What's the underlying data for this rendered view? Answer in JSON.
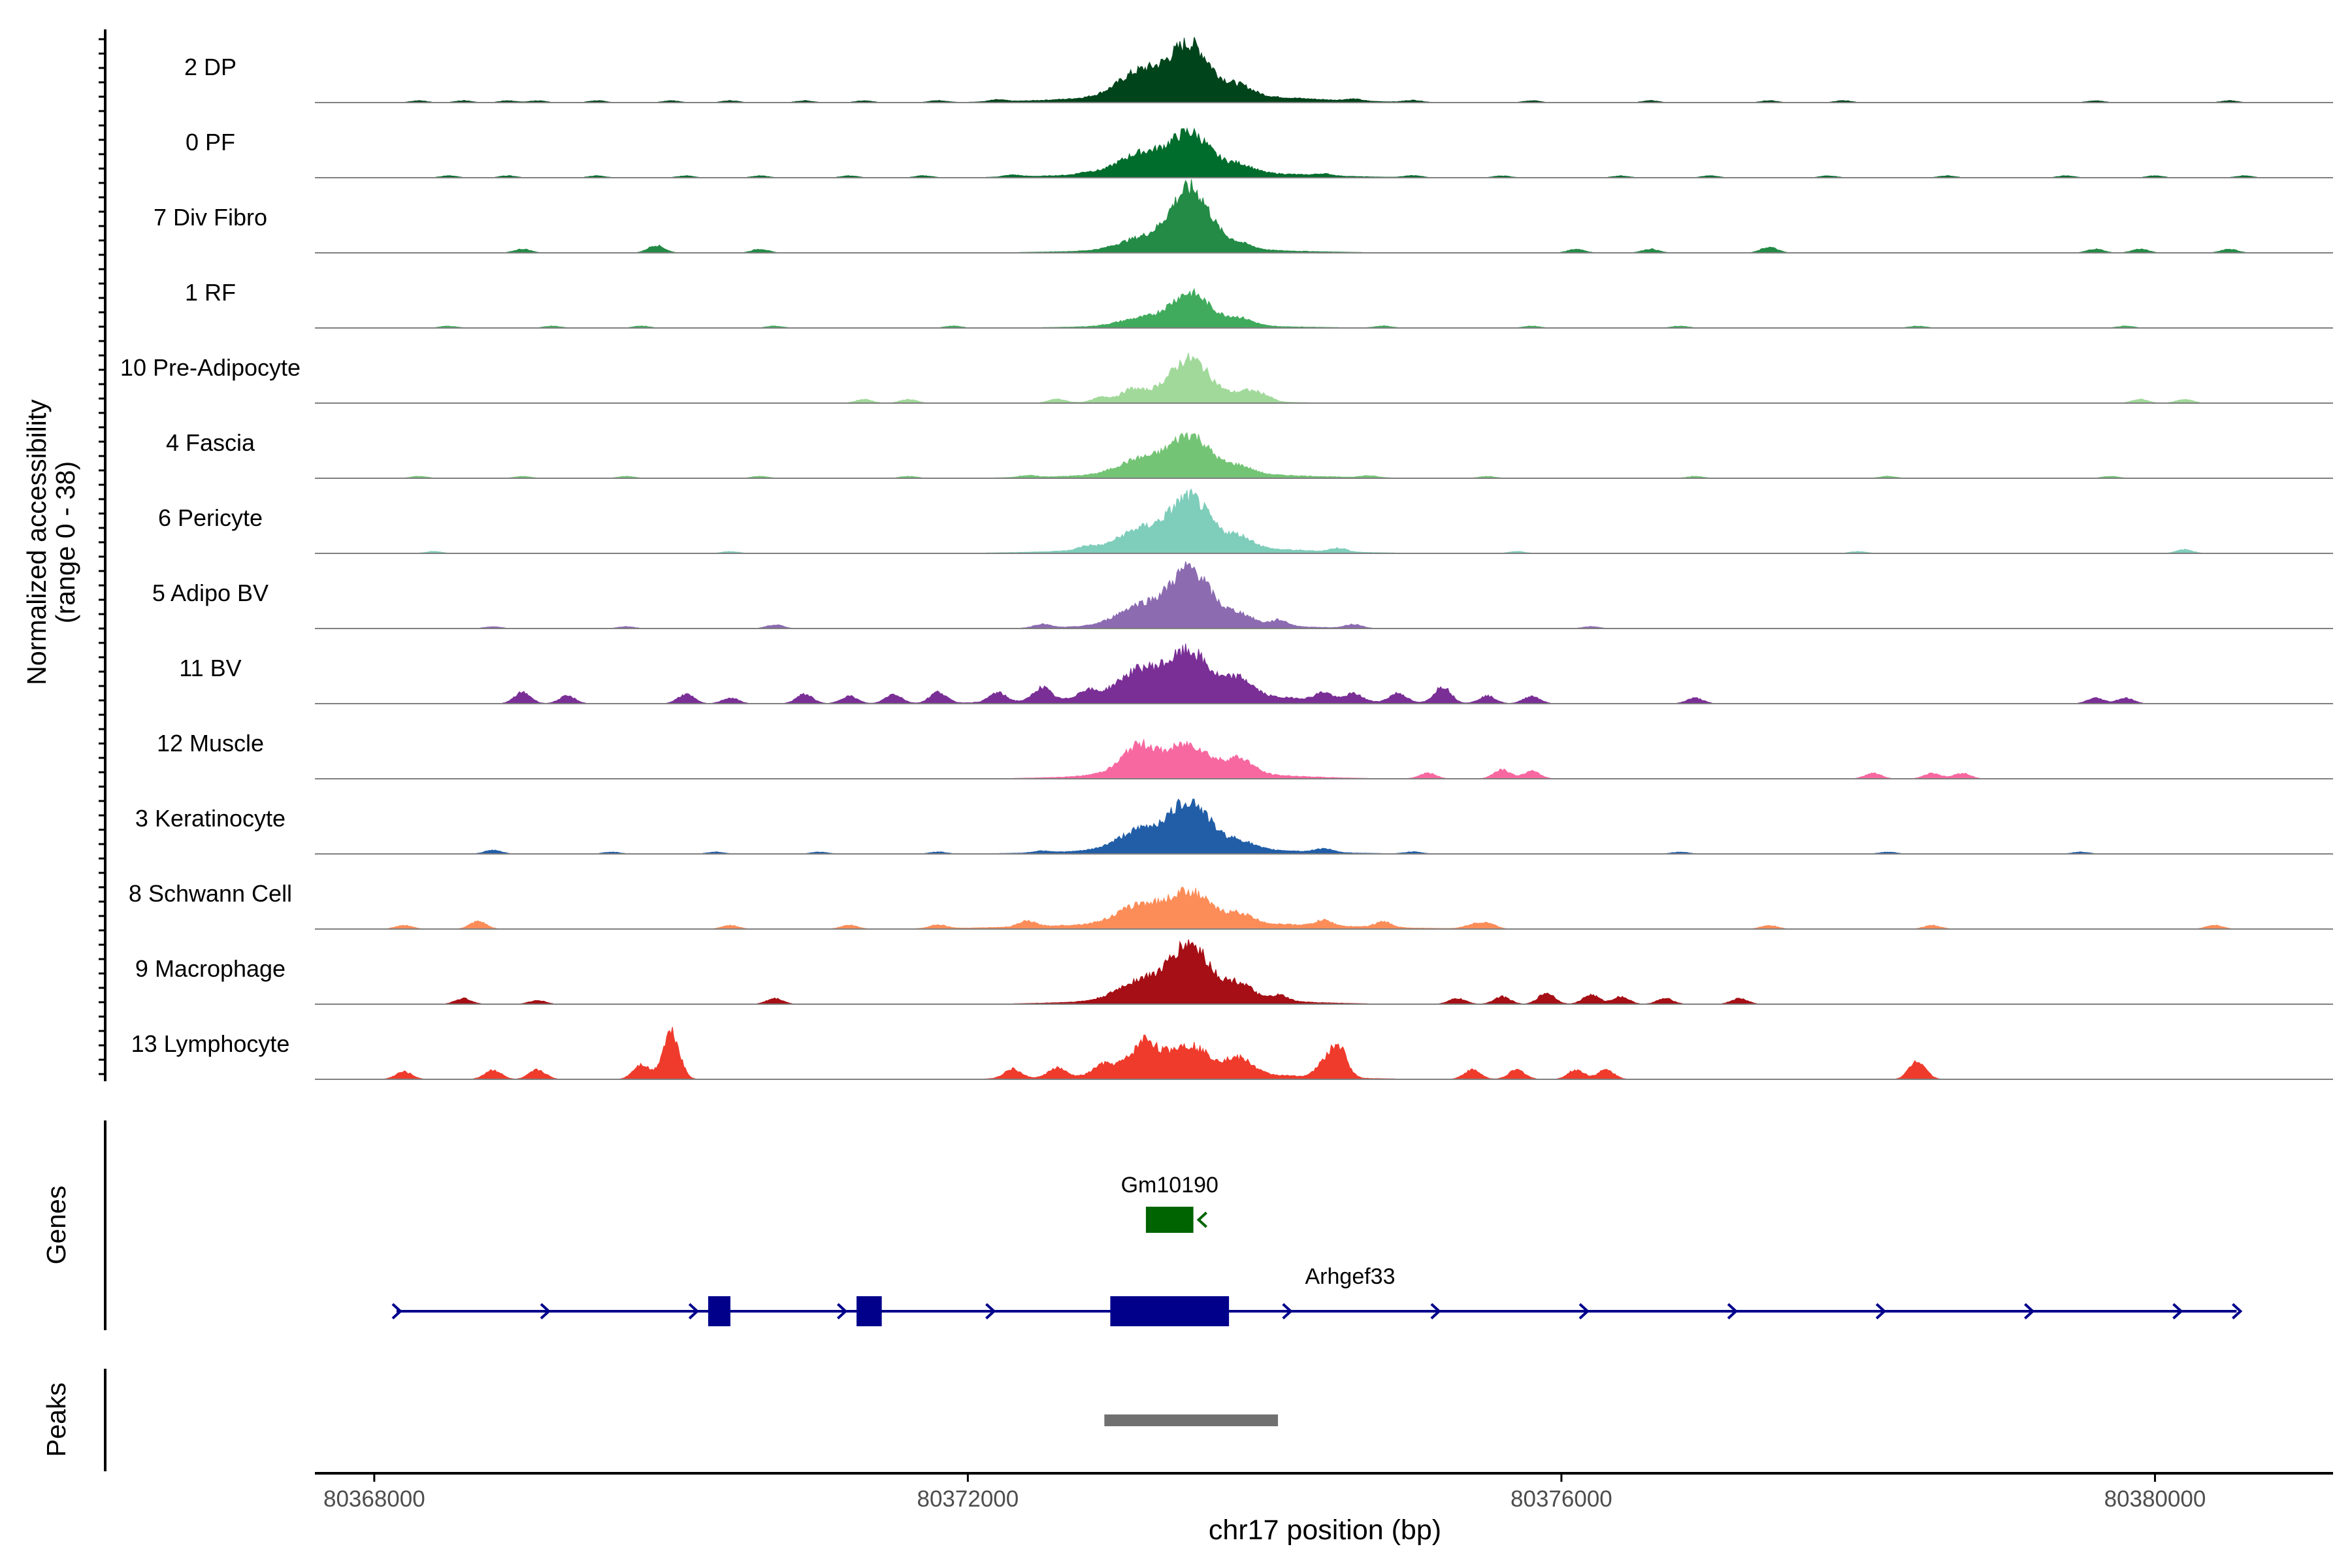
{
  "chart_data": {
    "type": "area",
    "title": "",
    "ylabel": "Normalized accessibility",
    "ylabel_range": "(range 0 - 38)",
    "xlabel": "chr17 position (bp)",
    "y_range": [
      0,
      38
    ],
    "x_range": [
      80367600,
      80381200
    ],
    "x_ticks": [
      {
        "value": 80368000,
        "label": "80368000"
      },
      {
        "value": 80372000,
        "label": "80372000"
      },
      {
        "value": 80376000,
        "label": "80376000"
      },
      {
        "value": 80380000,
        "label": "80380000"
      }
    ],
    "main_peak_center": 80373500,
    "tracks": [
      {
        "name": "2 DP",
        "color": "#00441b",
        "peak": 26,
        "shoulder": 13,
        "right_bump": 5,
        "spread": 620,
        "islands": [
          [
            80368300,
            1
          ],
          [
            80368600,
            1
          ],
          [
            80368900,
            1
          ],
          [
            80369100,
            1
          ],
          [
            80369500,
            1
          ],
          [
            80370000,
            1
          ],
          [
            80370400,
            1
          ],
          [
            80370900,
            1
          ],
          [
            80371300,
            1
          ],
          [
            80371800,
            1
          ],
          [
            80372200,
            1
          ],
          [
            80374600,
            1
          ],
          [
            80375000,
            1
          ],
          [
            80375800,
            1
          ],
          [
            80376600,
            1
          ],
          [
            80377400,
            1
          ],
          [
            80377900,
            1
          ],
          [
            80379600,
            1
          ],
          [
            80380500,
            1
          ]
        ]
      },
      {
        "name": "0 PF",
        "color": "#006d2c",
        "peak": 20,
        "shoulder": 10,
        "right_bump": 4,
        "spread": 600,
        "islands": [
          [
            80368500,
            1
          ],
          [
            80368900,
            1
          ],
          [
            80369500,
            1
          ],
          [
            80370100,
            1
          ],
          [
            80370600,
            1
          ],
          [
            80371200,
            1
          ],
          [
            80371700,
            1
          ],
          [
            80372300,
            1
          ],
          [
            80372800,
            1
          ],
          [
            80374400,
            1
          ],
          [
            80375000,
            1
          ],
          [
            80375600,
            1
          ],
          [
            80376400,
            1
          ],
          [
            80377000,
            1
          ],
          [
            80377800,
            1
          ],
          [
            80378600,
            1
          ],
          [
            80379400,
            1
          ],
          [
            80380000,
            1
          ],
          [
            80380600,
            1
          ]
        ]
      },
      {
        "name": "7 Div Fibro",
        "color": "#238b45",
        "peak": 32,
        "shoulder": 6,
        "right_bump": 3,
        "spread": 560,
        "islands": [
          [
            80369000,
            2
          ],
          [
            80369900,
            4
          ],
          [
            80370600,
            2
          ],
          [
            80376100,
            2
          ],
          [
            80376600,
            2
          ],
          [
            80377400,
            3
          ],
          [
            80379600,
            2
          ],
          [
            80379900,
            2
          ],
          [
            80380500,
            2
          ]
        ]
      },
      {
        "name": "1 RF",
        "color": "#41ab5d",
        "peak": 17,
        "shoulder": 4,
        "right_bump": 4,
        "spread": 540,
        "islands": [
          [
            80368500,
            1
          ],
          [
            80369200,
            1
          ],
          [
            80369800,
            1
          ],
          [
            80370700,
            1
          ],
          [
            80371900,
            1
          ],
          [
            80374800,
            1
          ],
          [
            80375800,
            1
          ],
          [
            80376800,
            1
          ],
          [
            80378400,
            1
          ],
          [
            80379800,
            1
          ]
        ]
      },
      {
        "name": "10 Pre-Adipocyte",
        "color": "#a1d99b",
        "peak": 22,
        "shoulder": 4,
        "right_bump": 3,
        "spread": 430,
        "islands": [
          [
            80371300,
            2
          ],
          [
            80371600,
            2
          ],
          [
            80372600,
            2
          ],
          [
            80372900,
            2
          ],
          [
            80373100,
            3
          ],
          [
            80373900,
            3
          ],
          [
            80374000,
            3
          ],
          [
            80379900,
            2
          ],
          [
            80380200,
            2
          ]
        ]
      },
      {
        "name": "4 Fascia",
        "color": "#74c476",
        "peak": 20,
        "shoulder": 8,
        "right_bump": 4,
        "spread": 600,
        "islands": [
          [
            80368300,
            1
          ],
          [
            80369000,
            1
          ],
          [
            80369700,
            1
          ],
          [
            80370600,
            1
          ],
          [
            80371600,
            1
          ],
          [
            80372400,
            1
          ],
          [
            80374700,
            1
          ],
          [
            80375500,
            1
          ],
          [
            80376900,
            1
          ],
          [
            80378200,
            1
          ],
          [
            80379700,
            1
          ]
        ]
      },
      {
        "name": "6 Pericyte",
        "color": "#7fcdbb",
        "peak": 26,
        "shoulder": 10,
        "right_bump": 6,
        "spread": 600,
        "islands": [
          [
            80368400,
            1
          ],
          [
            80370400,
            1
          ],
          [
            80372800,
            2
          ],
          [
            80374500,
            2
          ],
          [
            80375700,
            1
          ],
          [
            80378000,
            1
          ],
          [
            80380200,
            2
          ]
        ]
      },
      {
        "name": "5 Adipo BV",
        "color": "#8c6bb1",
        "peak": 28,
        "shoulder": 10,
        "right_bump": 5,
        "spread": 470,
        "islands": [
          [
            80368800,
            1
          ],
          [
            80369700,
            1
          ],
          [
            80370700,
            2
          ],
          [
            80372500,
            2
          ],
          [
            80374100,
            3
          ],
          [
            80374600,
            2
          ],
          [
            80376200,
            1
          ]
        ]
      },
      {
        "name": "11 BV",
        "color": "#7a2f96",
        "peak": 22,
        "shoulder": 14,
        "right_bump": 9,
        "spread": 700,
        "islands": [
          [
            80369000,
            6
          ],
          [
            80369300,
            4
          ],
          [
            80370100,
            5
          ],
          [
            80370400,
            3
          ],
          [
            80370900,
            5
          ],
          [
            80371200,
            4
          ],
          [
            80371500,
            5
          ],
          [
            80371800,
            6
          ],
          [
            80372200,
            5
          ],
          [
            80372500,
            7
          ],
          [
            80372800,
            4
          ],
          [
            80374400,
            4
          ],
          [
            80374600,
            4
          ],
          [
            80374900,
            5
          ],
          [
            80375200,
            9
          ],
          [
            80375500,
            4
          ],
          [
            80375800,
            4
          ],
          [
            80376900,
            3
          ],
          [
            80379600,
            3
          ],
          [
            80379800,
            3
          ]
        ]
      },
      {
        "name": "12 Muscle",
        "color": "#f768a1",
        "peak": 14,
        "shoulder": 10,
        "right_bump": 8,
        "spread": 520,
        "islands": [
          [
            80373100,
            4
          ],
          [
            80373200,
            4
          ],
          [
            80375100,
            3
          ],
          [
            80375600,
            5
          ],
          [
            80375800,
            4
          ],
          [
            80378100,
            3
          ],
          [
            80378500,
            3
          ],
          [
            80378700,
            3
          ]
        ]
      },
      {
        "name": "3 Keratinocyte",
        "color": "#225ea8",
        "peak": 24,
        "shoulder": 10,
        "right_bump": 4,
        "spread": 560,
        "islands": [
          [
            80368800,
            2
          ],
          [
            80369600,
            1
          ],
          [
            80370300,
            1
          ],
          [
            80371000,
            1
          ],
          [
            80371800,
            1
          ],
          [
            80372500,
            1
          ],
          [
            80374400,
            2
          ],
          [
            80375000,
            1
          ],
          [
            80376800,
            1
          ],
          [
            80378200,
            1
          ],
          [
            80379500,
            1
          ]
        ]
      },
      {
        "name": "8 Schwann Cell",
        "color": "#fc8d59",
        "peak": 16,
        "shoulder": 10,
        "right_bump": 5,
        "spread": 780,
        "islands": [
          [
            80368200,
            2
          ],
          [
            80368700,
            4
          ],
          [
            80370400,
            2
          ],
          [
            80371200,
            2
          ],
          [
            80371800,
            2
          ],
          [
            80372400,
            3
          ],
          [
            80374400,
            3
          ],
          [
            80374800,
            3
          ],
          [
            80375400,
            2
          ],
          [
            80375500,
            3
          ],
          [
            80377400,
            2
          ],
          [
            80378500,
            2
          ],
          [
            80380400,
            2
          ]
        ]
      },
      {
        "name": "9 Macrophage",
        "color": "#a50f15",
        "peak": 28,
        "shoulder": 10,
        "right_bump": 8,
        "spread": 520,
        "islands": [
          [
            80368600,
            3
          ],
          [
            80369100,
            2
          ],
          [
            80370700,
            3
          ],
          [
            80374100,
            3
          ],
          [
            80375300,
            3
          ],
          [
            80375600,
            4
          ],
          [
            80375900,
            6
          ],
          [
            80376200,
            5
          ],
          [
            80376400,
            4
          ],
          [
            80376700,
            3
          ],
          [
            80377200,
            3
          ]
        ]
      },
      {
        "name": "13 Lymphocyte",
        "color": "#ef3b2c",
        "peak": 14,
        "shoulder": 10,
        "right_bump": 8,
        "spread": 600,
        "islands": [
          [
            80368200,
            4
          ],
          [
            80368800,
            5
          ],
          [
            80369100,
            5
          ],
          [
            80369800,
            8
          ],
          [
            80370000,
            26
          ],
          [
            80372300,
            5
          ],
          [
            80372600,
            5
          ],
          [
            80372900,
            4
          ],
          [
            80373200,
            8
          ],
          [
            80374400,
            7
          ],
          [
            80374500,
            16
          ],
          [
            80375400,
            5
          ],
          [
            80375700,
            5
          ],
          [
            80376100,
            5
          ],
          [
            80376300,
            5
          ],
          [
            80378400,
            10
          ]
        ]
      }
    ],
    "genes": [
      {
        "name": "Gm10190",
        "start": 80373200,
        "end": 80373520,
        "strand": "-",
        "color": "#006400",
        "exons": [
          [
            80373200,
            80373520
          ]
        ]
      },
      {
        "name": "Arhgef33",
        "start": 80368150,
        "end": 80380550,
        "strand": "+",
        "color": "#00008b",
        "exons": [
          [
            80370250,
            80370400
          ],
          [
            80371250,
            80371420
          ],
          [
            80372960,
            80373760
          ]
        ]
      }
    ],
    "peaks": [
      {
        "start": 80372920,
        "end": 80374090,
        "color": "#707070"
      }
    ]
  },
  "panel_labels": {
    "genes": "Genes",
    "peaks": "Peaks"
  }
}
